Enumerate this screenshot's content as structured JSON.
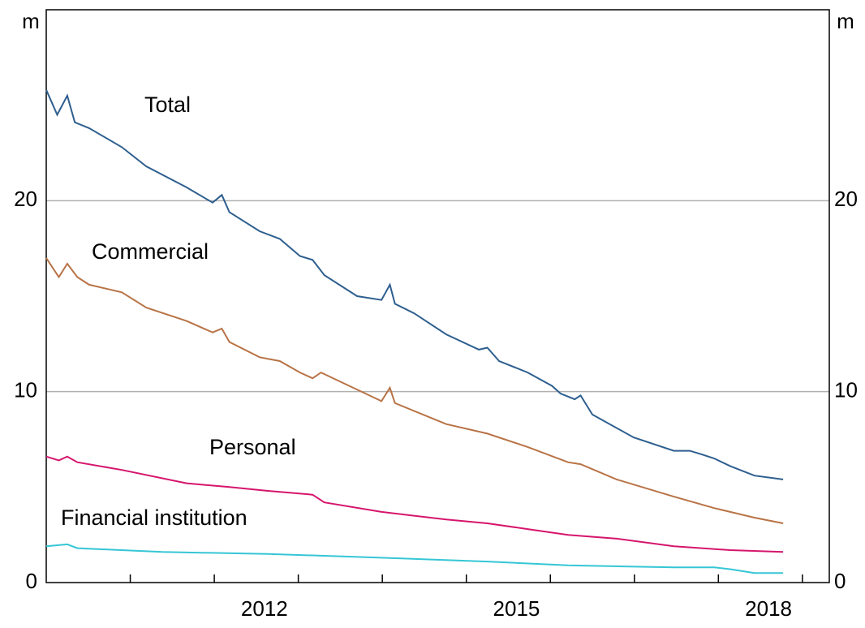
{
  "chart_data": {
    "type": "line",
    "y_unit_label": "m",
    "xlim": [
      2010,
      2019.32
    ],
    "ylim": [
      0,
      30
    ],
    "yticks": [
      0,
      10,
      20
    ],
    "xticks": [
      {
        "value": 2012.5,
        "label": "2012"
      },
      {
        "value": 2015.5,
        "label": "2015"
      },
      {
        "value": 2018.5,
        "label": "2018"
      }
    ],
    "xticks_minor": [
      2011,
      2012,
      2013,
      2014,
      2015,
      2016,
      2017,
      2018,
      2019
    ],
    "grid": true,
    "series": [
      {
        "name": "Total",
        "color": "#2e5f8f",
        "x": [
          2010.0,
          2010.13,
          2010.25,
          2010.34,
          2010.51,
          2010.9,
          2011.19,
          2011.67,
          2011.98,
          2012.09,
          2012.18,
          2012.54,
          2012.78,
          2013.02,
          2013.17,
          2013.31,
          2013.7,
          2013.99,
          2014.09,
          2014.15,
          2014.38,
          2014.76,
          2015.15,
          2015.25,
          2015.39,
          2015.73,
          2016.02,
          2016.12,
          2016.29,
          2016.36,
          2016.5,
          2016.99,
          2017.47,
          2017.66,
          2017.81,
          2017.95,
          2018.14,
          2018.43,
          2018.77
        ],
        "values": [
          25.8,
          24.5,
          25.5,
          24.1,
          23.8,
          22.8,
          21.8,
          20.7,
          19.9,
          20.3,
          19.4,
          18.4,
          18.0,
          17.1,
          16.9,
          16.1,
          15.0,
          14.8,
          15.6,
          14.6,
          14.1,
          13.0,
          12.2,
          12.3,
          11.6,
          11.0,
          10.3,
          9.9,
          9.6,
          9.8,
          8.8,
          7.6,
          6.9,
          6.9,
          6.7,
          6.5,
          6.1,
          5.6,
          5.4
        ]
      },
      {
        "name": "Commercial",
        "color": "#b87346",
        "x": [
          2010.0,
          2010.15,
          2010.25,
          2010.37,
          2010.51,
          2010.9,
          2011.19,
          2011.67,
          2011.98,
          2012.09,
          2012.18,
          2012.54,
          2012.78,
          2013.02,
          2013.17,
          2013.27,
          2013.51,
          2013.99,
          2014.09,
          2014.15,
          2014.76,
          2015.25,
          2015.73,
          2016.21,
          2016.36,
          2016.79,
          2017.47,
          2017.95,
          2018.14,
          2018.43,
          2018.77
        ],
        "values": [
          17.0,
          16.0,
          16.7,
          16.0,
          15.6,
          15.2,
          14.4,
          13.7,
          13.1,
          13.3,
          12.6,
          11.8,
          11.6,
          11.0,
          10.7,
          11.0,
          10.5,
          9.5,
          10.2,
          9.4,
          8.3,
          7.8,
          7.1,
          6.3,
          6.2,
          5.4,
          4.5,
          3.9,
          3.7,
          3.4,
          3.1
        ]
      },
      {
        "name": "Personal",
        "color": "#d6156d",
        "x": [
          2010.0,
          2010.15,
          2010.25,
          2010.37,
          2010.9,
          2011.67,
          2012.18,
          2012.64,
          2013.17,
          2013.31,
          2013.99,
          2014.76,
          2015.25,
          2015.73,
          2016.21,
          2016.79,
          2017.47,
          2018.14,
          2018.77
        ],
        "values": [
          6.6,
          6.4,
          6.6,
          6.3,
          5.9,
          5.2,
          5.0,
          4.8,
          4.6,
          4.2,
          3.7,
          3.3,
          3.1,
          2.8,
          2.5,
          2.3,
          1.9,
          1.7,
          1.6
        ]
      },
      {
        "name": "Financial institution",
        "color": "#35c6d6",
        "x": [
          2010.0,
          2010.25,
          2010.37,
          2011.38,
          2012.64,
          2013.99,
          2015.25,
          2016.21,
          2017.47,
          2017.95,
          2018.14,
          2018.43,
          2018.77
        ],
        "values": [
          1.9,
          2.0,
          1.8,
          1.6,
          1.5,
          1.3,
          1.1,
          0.9,
          0.8,
          0.8,
          0.7,
          0.5,
          0.5
        ]
      }
    ]
  }
}
